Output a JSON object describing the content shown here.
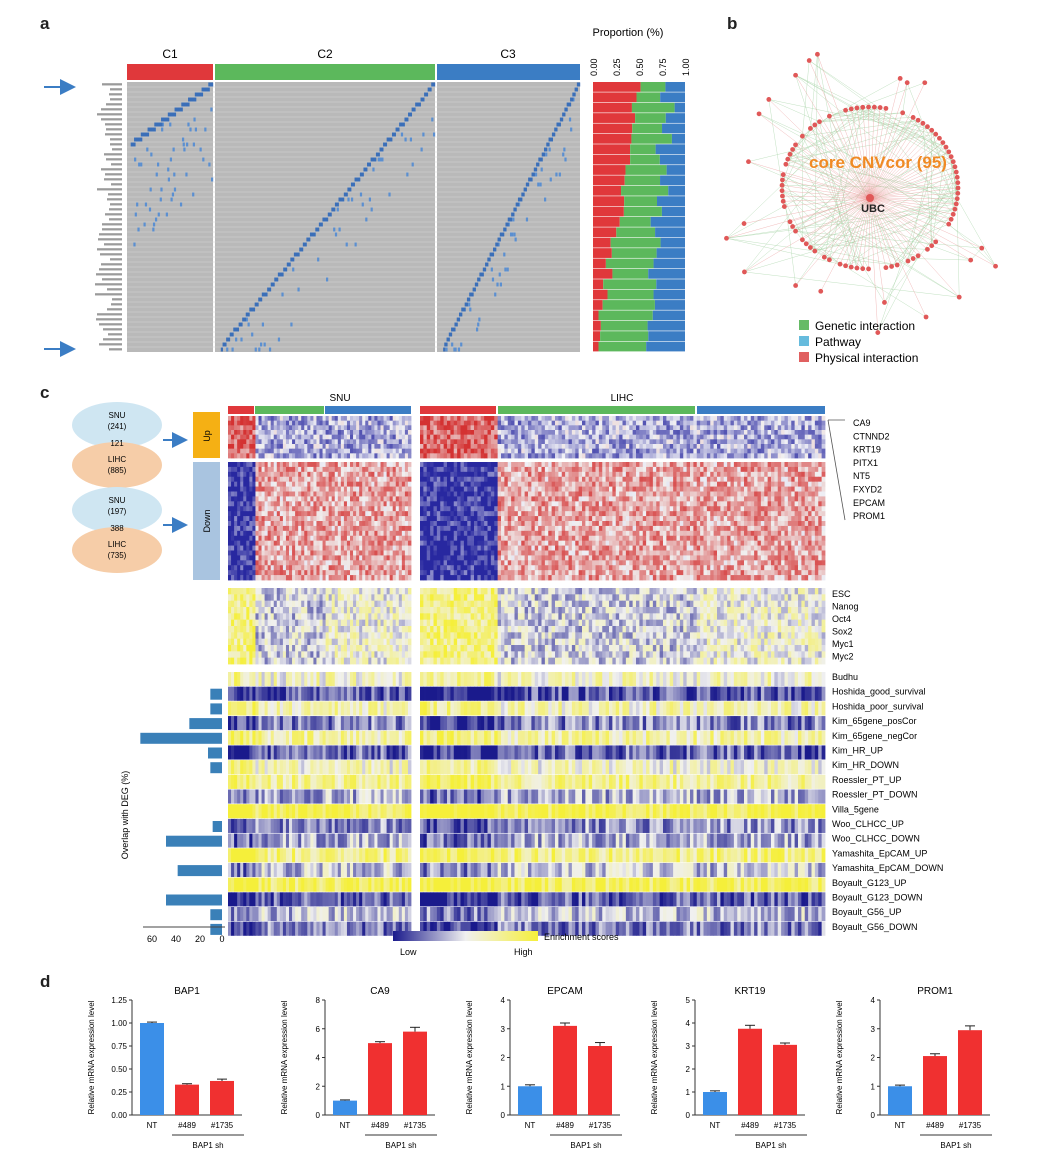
{
  "panels": {
    "a": "a",
    "b": "b",
    "c": "c",
    "d": "d"
  },
  "panel_a": {
    "clusters": [
      "C1",
      "C2",
      "C3"
    ],
    "cluster_colors": [
      "#e0383b",
      "#5cb85c",
      "#3b7dc4"
    ],
    "proportion_title": "Proportion (%)",
    "proportion_ticks": [
      "0.00",
      "0.25",
      "0.50",
      "0.75",
      "1.00"
    ]
  },
  "panel_b": {
    "center_label": "core CNVcor (95)",
    "hub_label": "UBC",
    "legend": [
      {
        "label": "Genetic interaction",
        "color": "#66bb66"
      },
      {
        "label": "Pathway",
        "color": "#66bbdd"
      },
      {
        "label": "Physical interaction",
        "color": "#e06060"
      }
    ]
  },
  "panel_c": {
    "datasets": [
      "SNU",
      "LIHC"
    ],
    "venn": [
      {
        "top": "SNU",
        "top_n": "(241)",
        "overlap": "121",
        "bottom": "LIHC",
        "bottom_n": "(885)"
      },
      {
        "top": "SNU",
        "top_n": "(197)",
        "overlap": "388",
        "bottom": "LIHC",
        "bottom_n": "(735)"
      }
    ],
    "direction_labels": [
      "Up",
      "Down"
    ],
    "genes": [
      "CA9",
      "CTNND2",
      "KRT19",
      "PITX1",
      "NT5",
      "FXYD2",
      "EPCAM",
      "PROM1"
    ],
    "stem_sets": [
      "ESC",
      "Nanog",
      "Oct4",
      "Sox2",
      "Myc1",
      "Myc2"
    ],
    "signatures": [
      "Budhu",
      "Hoshida_good_survival",
      "Hoshida_poor_survival",
      "Kim_65gene_posCor",
      "Kim_65gene_negCor",
      "Kim_HR_UP",
      "Kim_HR_DOWN",
      "Roessler_PT_UP",
      "Roessler_PT_DOWN",
      "Villa_5gene",
      "Woo_CLHCC_UP",
      "Woo_CLHCC_DOWN",
      "Yamashita_EpCAM_UP",
      "Yamashita_EpCAM_DOWN",
      "Boyault_G123_UP",
      "Boyault_G123_DOWN",
      "Boyault_G56_UP",
      "Boyault_G56_DOWN"
    ],
    "overlap_axis_label": "Overlap with DEG (%)",
    "overlap_ticks": [
      "60",
      "40",
      "20",
      "0"
    ],
    "legend_title": "Enrichment scores",
    "legend_low": "Low",
    "legend_high": "High"
  },
  "colors": {
    "nt_bar": "#3b8fe8",
    "sh_bar": "#f03030",
    "heat_low": "#1a1a8c",
    "heat_high": "#f5ef3a",
    "heat_red": "#d43030",
    "up_box": "#f5b014",
    "down_box": "#a9c4e0",
    "venn_top": "#cfe6f2",
    "venn_bottom": "#f6cda8"
  },
  "chart_data": [
    {
      "type": "bar",
      "title": "BAP1",
      "ylabel": "Relative mRNA expression level",
      "categories": [
        "NT",
        "#489",
        "#1735"
      ],
      "values": [
        1.0,
        0.33,
        0.37
      ],
      "errors": [
        0.01,
        0.01,
        0.02
      ],
      "ylim": [
        0,
        1.25
      ],
      "yticks": [
        "0.00",
        "0.25",
        "0.50",
        "0.75",
        "1.00",
        "1.25"
      ],
      "group_label": "BAP1 sh"
    },
    {
      "type": "bar",
      "title": "CA9",
      "ylabel": "Relative mRNA expression level",
      "categories": [
        "NT",
        "#489",
        "#1735"
      ],
      "values": [
        1.0,
        5.0,
        5.8
      ],
      "errors": [
        0.05,
        0.1,
        0.3
      ],
      "ylim": [
        0,
        8
      ],
      "yticks": [
        "0",
        "2",
        "4",
        "6",
        "8"
      ],
      "group_label": "BAP1 sh"
    },
    {
      "type": "bar",
      "title": "EPCAM",
      "ylabel": "Relative mRNA expression level",
      "categories": [
        "NT",
        "#489",
        "#1735"
      ],
      "values": [
        1.0,
        3.1,
        2.4
      ],
      "errors": [
        0.05,
        0.1,
        0.12
      ],
      "ylim": [
        0,
        4
      ],
      "yticks": [
        "0",
        "1",
        "2",
        "3",
        "4"
      ],
      "group_label": "BAP1 sh"
    },
    {
      "type": "bar",
      "title": "KRT19",
      "ylabel": "Relative mRNA expression level",
      "categories": [
        "NT",
        "#489",
        "#1735"
      ],
      "values": [
        1.0,
        3.75,
        3.05
      ],
      "errors": [
        0.05,
        0.15,
        0.08
      ],
      "ylim": [
        0,
        5
      ],
      "yticks": [
        "0",
        "1",
        "2",
        "3",
        "4",
        "5"
      ],
      "group_label": "BAP1 sh"
    },
    {
      "type": "bar",
      "title": "PROM1",
      "ylabel": "Relative mRNA expression level",
      "categories": [
        "NT",
        "#489",
        "#1735"
      ],
      "values": [
        1.0,
        2.05,
        2.95
      ],
      "errors": [
        0.04,
        0.08,
        0.15
      ],
      "ylim": [
        0,
        4
      ],
      "yticks": [
        "0",
        "1",
        "2",
        "3",
        "4"
      ],
      "group_label": "BAP1 sh"
    }
  ]
}
